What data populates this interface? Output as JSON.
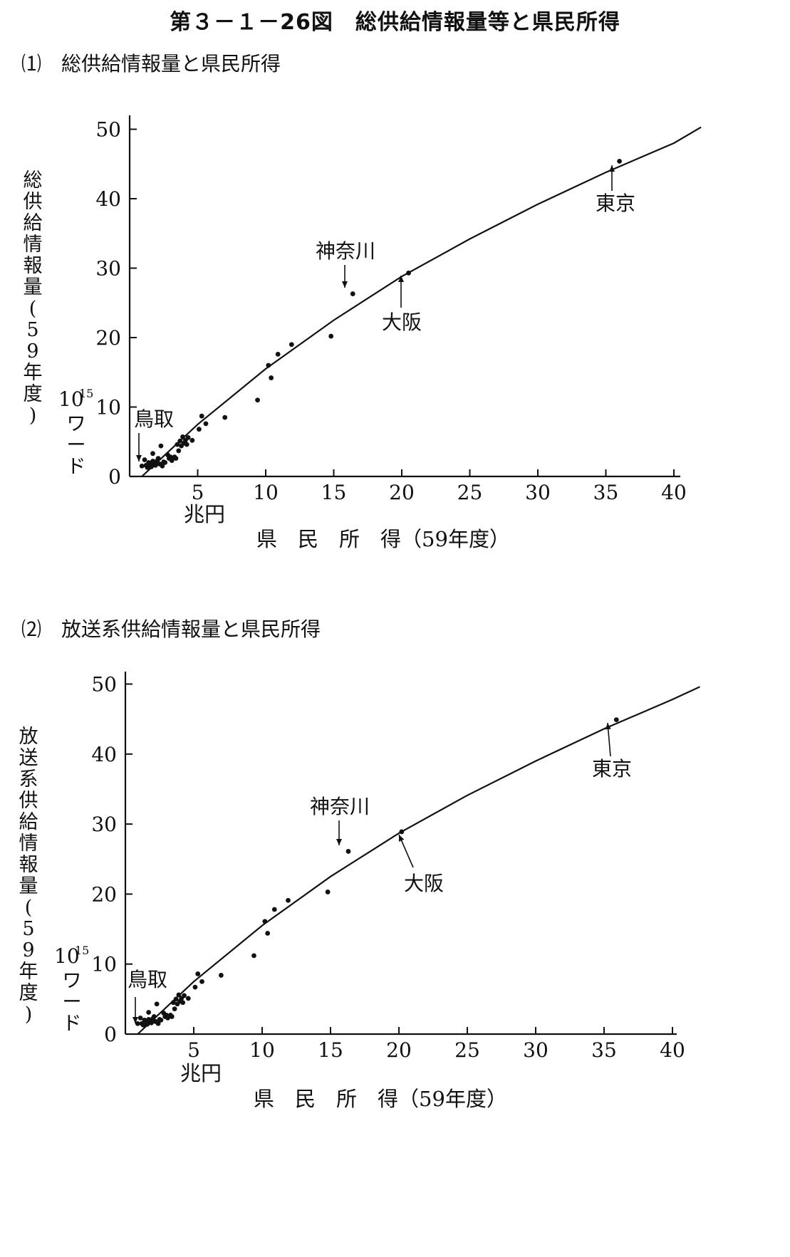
{
  "figure_title": "第３－１－26図　総供給情報量等と県民所得",
  "chart_data": [
    {
      "type": "scatter",
      "subtitle": "⑴　総供給情報量と県民所得",
      "ylabel": "総供給情報量(59年度)",
      "yunit": [
        "10",
        "15",
        "ワード"
      ],
      "xunit": "兆円",
      "xlabel": "県　民　所　得（59年度）",
      "xlim": [
        0,
        41
      ],
      "ylim": [
        0,
        51
      ],
      "x_ticks": [
        5,
        10,
        15,
        20,
        25,
        30,
        35,
        40
      ],
      "y_ticks": [
        0,
        10,
        20,
        30,
        40,
        50
      ],
      "points": [
        [
          0.9,
          1.5
        ],
        [
          1.1,
          2.4
        ],
        [
          1.2,
          1.6
        ],
        [
          1.3,
          1.3
        ],
        [
          1.4,
          2.0
        ],
        [
          1.5,
          1.7
        ],
        [
          1.6,
          1.4
        ],
        [
          1.7,
          3.3
        ],
        [
          1.7,
          2.2
        ],
        [
          1.8,
          1.9
        ],
        [
          1.9,
          1.6
        ],
        [
          2.0,
          2.2
        ],
        [
          2.1,
          2.6
        ],
        [
          2.2,
          1.8
        ],
        [
          2.3,
          4.4
        ],
        [
          2.4,
          1.5
        ],
        [
          2.5,
          2.1
        ],
        [
          2.6,
          2.0
        ],
        [
          2.8,
          3.1
        ],
        [
          2.9,
          2.6
        ],
        [
          3.0,
          2.8
        ],
        [
          3.1,
          2.3
        ],
        [
          3.3,
          2.8
        ],
        [
          3.4,
          2.6
        ],
        [
          3.5,
          4.6
        ],
        [
          3.6,
          3.7
        ],
        [
          3.7,
          5.1
        ],
        [
          3.8,
          4.4
        ],
        [
          3.9,
          5.7
        ],
        [
          4.0,
          4.8
        ],
        [
          4.1,
          5.2
        ],
        [
          4.2,
          4.6
        ],
        [
          4.3,
          5.6
        ],
        [
          4.6,
          5.2
        ],
        [
          5.1,
          6.8
        ],
        [
          5.3,
          8.7
        ],
        [
          5.6,
          7.6
        ],
        [
          7.0,
          8.5
        ],
        [
          9.4,
          11.0
        ],
        [
          10.2,
          16.0
        ],
        [
          10.4,
          14.2
        ],
        [
          10.9,
          17.6
        ],
        [
          11.9,
          19.0
        ],
        [
          14.8,
          20.2
        ],
        [
          16.4,
          26.3
        ],
        [
          20.5,
          29.3
        ],
        [
          36.0,
          45.4
        ]
      ],
      "curve": [
        [
          0.9,
          0
        ],
        [
          5,
          7.5
        ],
        [
          10,
          15.5
        ],
        [
          15,
          22.5
        ],
        [
          20,
          28.8
        ],
        [
          25,
          34.2
        ],
        [
          30,
          39.2
        ],
        [
          35,
          43.8
        ],
        [
          40,
          48.0
        ],
        [
          42,
          50.3
        ]
      ],
      "annotations": [
        {
          "label": "東京",
          "x": 36.0,
          "y": 45.4
        },
        {
          "label": "神奈川",
          "x": 16.4,
          "y": 26.3
        },
        {
          "label": "大阪",
          "x": 20.5,
          "y": 29.3
        },
        {
          "label": "鳥取",
          "x": 0.9,
          "y": 1.5
        }
      ]
    },
    {
      "type": "scatter",
      "subtitle": "⑵　放送系供給情報量と県民所得",
      "ylabel": "放送系供給情報量(59年度)",
      "yunit": [
        "10",
        "15",
        "ワード"
      ],
      "xunit": "兆円",
      "xlabel": "県　民　所　得（59年度）",
      "xlim": [
        0,
        41
      ],
      "ylim": [
        0,
        51
      ],
      "x_ticks": [
        5,
        10,
        15,
        20,
        25,
        30,
        35,
        40
      ],
      "y_ticks": [
        0,
        10,
        20,
        30,
        40,
        50
      ],
      "points": [
        [
          0.9,
          1.5
        ],
        [
          1.1,
          2.3
        ],
        [
          1.2,
          1.5
        ],
        [
          1.3,
          1.3
        ],
        [
          1.4,
          2.0
        ],
        [
          1.5,
          1.7
        ],
        [
          1.6,
          1.4
        ],
        [
          1.7,
          3.1
        ],
        [
          1.7,
          2.1
        ],
        [
          1.8,
          1.9
        ],
        [
          1.9,
          1.6
        ],
        [
          2.0,
          2.2
        ],
        [
          2.1,
          2.5
        ],
        [
          2.2,
          1.8
        ],
        [
          2.3,
          4.3
        ],
        [
          2.4,
          1.5
        ],
        [
          2.5,
          2.1
        ],
        [
          2.6,
          2.0
        ],
        [
          2.8,
          3.0
        ],
        [
          2.9,
          2.5
        ],
        [
          3.0,
          2.7
        ],
        [
          3.1,
          2.3
        ],
        [
          3.3,
          2.7
        ],
        [
          3.4,
          2.5
        ],
        [
          3.5,
          4.5
        ],
        [
          3.6,
          3.6
        ],
        [
          3.7,
          5.0
        ],
        [
          3.8,
          4.3
        ],
        [
          3.9,
          5.6
        ],
        [
          4.0,
          4.7
        ],
        [
          4.1,
          5.1
        ],
        [
          4.2,
          4.5
        ],
        [
          4.3,
          5.5
        ],
        [
          4.6,
          5.1
        ],
        [
          5.1,
          6.7
        ],
        [
          5.3,
          8.6
        ],
        [
          5.6,
          7.5
        ],
        [
          7.0,
          8.4
        ],
        [
          9.4,
          11.2
        ],
        [
          10.2,
          16.1
        ],
        [
          10.4,
          14.4
        ],
        [
          10.9,
          17.8
        ],
        [
          11.9,
          19.1
        ],
        [
          14.8,
          20.3
        ],
        [
          16.3,
          26.1
        ],
        [
          20.2,
          28.9
        ],
        [
          35.9,
          44.9
        ]
      ],
      "curve": [
        [
          0.9,
          0
        ],
        [
          5,
          7.5
        ],
        [
          10,
          15.5
        ],
        [
          15,
          22.5
        ],
        [
          20,
          28.7
        ],
        [
          25,
          34.1
        ],
        [
          30,
          39.0
        ],
        [
          35,
          43.6
        ],
        [
          40,
          47.8
        ],
        [
          42,
          49.6
        ]
      ],
      "annotations": [
        {
          "label": "東京",
          "x": 35.9,
          "y": 44.9
        },
        {
          "label": "神奈川",
          "x": 16.3,
          "y": 26.1
        },
        {
          "label": "大阪",
          "x": 20.2,
          "y": 28.9
        },
        {
          "label": "鳥取",
          "x": 0.9,
          "y": 1.5
        }
      ]
    }
  ]
}
